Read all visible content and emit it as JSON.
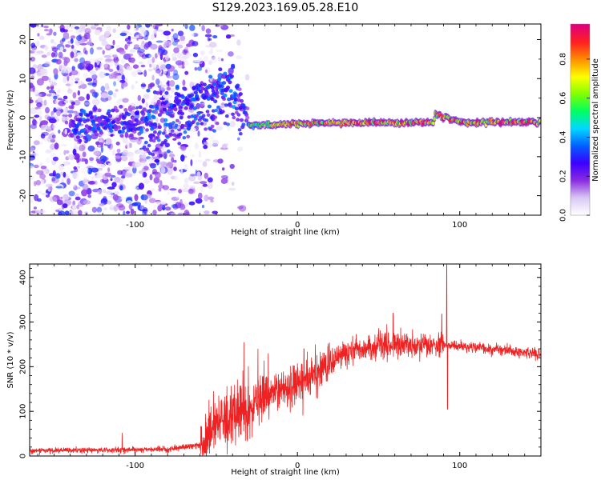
{
  "title": "S129.2023.169.05.28.E10",
  "chart_data": [
    {
      "type": "heatmap",
      "xlabel": "Height of straight line (km)",
      "ylabel": "Frequency (Hz)",
      "xlim": [
        -165,
        150
      ],
      "ylim": [
        -25,
        24
      ],
      "xticks": [
        -100,
        0,
        100
      ],
      "xtick_labels": [
        "-100",
        "0",
        "100"
      ],
      "yticks": [
        -20,
        -10,
        0,
        10,
        20
      ],
      "ytick_labels": [
        "-20",
        "-10",
        "0",
        "10",
        "20"
      ],
      "colorbar": {
        "label": "Normalized spectral amplitude",
        "range": [
          0,
          0.98
        ],
        "ticks": [
          0,
          0.2,
          0.4,
          0.6,
          0.8
        ],
        "tick_labels": [
          "0.0",
          "0.2",
          "0.4",
          "0.6",
          "0.8"
        ],
        "colormap": [
          "#ffffff",
          "#d9c6f5",
          "#8a2be2",
          "#3a00ff",
          "#0060ff",
          "#00d8ff",
          "#00ff60",
          "#80ff00",
          "#ffff00",
          "#ff9000",
          "#ff2020",
          "#e0007a"
        ]
      },
      "ridge": [
        {
          "x": -130,
          "y": -2.5
        },
        {
          "x": -100,
          "y": -1.5
        },
        {
          "x": -60,
          "y": 6
        },
        {
          "x": -40,
          "y": 9
        },
        {
          "x": -30,
          "y": -2
        },
        {
          "x": -10,
          "y": -1.8
        },
        {
          "x": 0,
          "y": -1.5
        },
        {
          "x": 40,
          "y": -1.3
        },
        {
          "x": 84,
          "y": -1.3
        },
        {
          "x": 85,
          "y": 1
        },
        {
          "x": 100,
          "y": -1.2
        },
        {
          "x": 150,
          "y": -1.2
        }
      ]
    },
    {
      "type": "line",
      "xlabel": "Height of straight line (km)",
      "ylabel": "SNR (10 * v/v)",
      "xlim": [
        -165,
        150
      ],
      "ylim": [
        0,
        430
      ],
      "xticks": [
        -100,
        0,
        100
      ],
      "xtick_labels": [
        "-100",
        "0",
        "100"
      ],
      "yticks": [
        0,
        100,
        200,
        300,
        400
      ],
      "ytick_labels": [
        "0",
        "100",
        "200",
        "300",
        "400"
      ],
      "series": [
        {
          "color": "#ee2222",
          "trend": [
            {
              "x": -165,
              "y": 12
            },
            {
              "x": -130,
              "y": 13
            },
            {
              "x": -80,
              "y": 15
            },
            {
              "x": -60,
              "y": 25
            },
            {
              "x": -50,
              "y": 60
            },
            {
              "x": -40,
              "y": 90
            },
            {
              "x": -30,
              "y": 110
            },
            {
              "x": -20,
              "y": 130
            },
            {
              "x": -10,
              "y": 150
            },
            {
              "x": 0,
              "y": 165
            },
            {
              "x": 10,
              "y": 180
            },
            {
              "x": 20,
              "y": 210
            },
            {
              "x": 30,
              "y": 230
            },
            {
              "x": 40,
              "y": 240
            },
            {
              "x": 60,
              "y": 250
            },
            {
              "x": 80,
              "y": 245
            },
            {
              "x": 92,
              "y": 250
            },
            {
              "x": 100,
              "y": 245
            },
            {
              "x": 120,
              "y": 240
            },
            {
              "x": 150,
              "y": 228
            }
          ],
          "peaks": [
            {
              "x": -108,
              "y": 52
            },
            {
              "x": -33,
              "y": 255
            },
            {
              "x": -18,
              "y": 230
            },
            {
              "x": 4,
              "y": 240
            },
            {
              "x": 59,
              "y": 320
            },
            {
              "x": 89,
              "y": 318
            },
            {
              "x": 92,
              "y": 428
            },
            {
              "x": 92.5,
              "y": 105
            }
          ]
        }
      ]
    }
  ]
}
